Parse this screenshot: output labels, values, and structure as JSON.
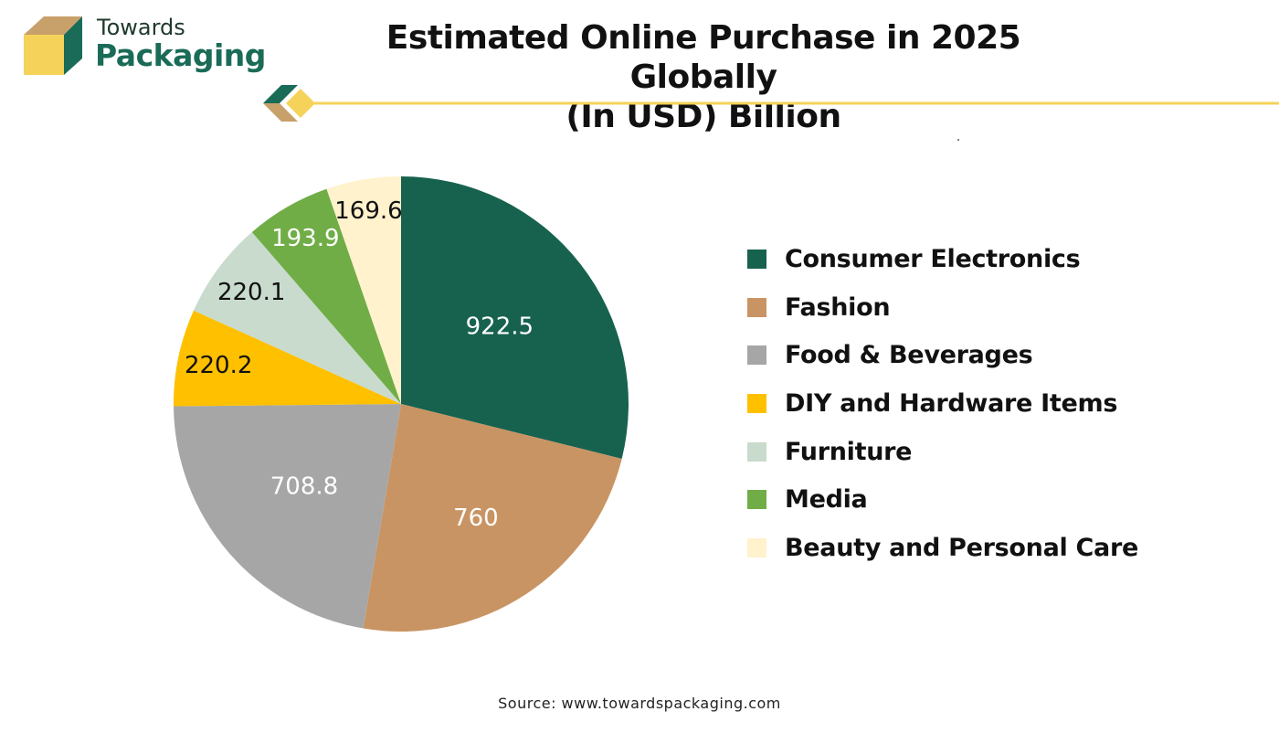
{
  "brand": {
    "name_top": "Towards",
    "name_bottom": "Packaging",
    "colors": {
      "dark_green": "#1a6b57",
      "tan": "#c8a06a",
      "yellow": "#f5d35a"
    }
  },
  "source": "Source: www.towardspackaging.com",
  "chart_data": {
    "type": "pie",
    "title": "Estimated Online Purchase in 2025 Globally",
    "subtitle": "(In USD) Billion",
    "legend_position": "right",
    "start_angle": "12 o'clock",
    "direction": "clockwise",
    "slices": [
      {
        "label": "Consumer Electronics",
        "value": 922.5,
        "value_text": "922.5",
        "color": "#17624f",
        "text_color": "#ffffff"
      },
      {
        "label": "Fashion",
        "value": 760,
        "value_text": "760",
        "color": "#c99463",
        "text_color": "#ffffff"
      },
      {
        "label": "Food & Beverages",
        "value": 708.8,
        "value_text": "708.8",
        "color": "#a6a6a6",
        "text_color": "#ffffff"
      },
      {
        "label": "DIY and Hardware Items",
        "value": 220.2,
        "value_text": "220.2",
        "color": "#ffc000",
        "text_color": "#111111"
      },
      {
        "label": "Furniture",
        "value": 220.1,
        "value_text": "220.1",
        "color": "#c8dbcd",
        "text_color": "#111111"
      },
      {
        "label": "Media",
        "value": 193.9,
        "value_text": "193.9",
        "color": "#70ad47",
        "text_color": "#ffffff"
      },
      {
        "label": "Beauty and Personal Care",
        "value": 169.6,
        "value_text": "169.6",
        "color": "#fff2cc",
        "text_color": "#111111"
      }
    ]
  }
}
